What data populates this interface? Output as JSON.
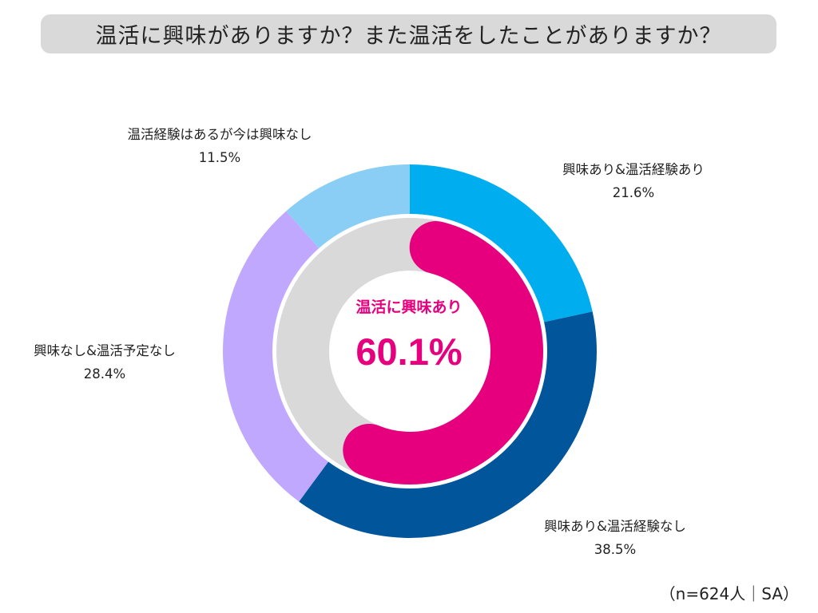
{
  "title": "温活に興味がありますか？また温活をしたことがありますか？",
  "sample_note": "（n=624人｜SA）",
  "center": {
    "caption": "温活に興味あり",
    "value": "60.1%"
  },
  "colors": {
    "inner_highlight": "#e6007e",
    "inner_remainder": "#d9d9d9",
    "center_text": "#e6007e"
  },
  "chart_data": {
    "type": "pie",
    "variant": "nested-donut",
    "title": "温活に興味がありますか？また温活をしたことがありますか？",
    "outer_ring": {
      "categories": [
        "興味あり&温活経験あり",
        "興味あり&温活経験なし",
        "興味なし&温活予定なし",
        "温活経験はあるが今は興味なし"
      ],
      "values": [
        21.6,
        38.5,
        28.4,
        11.5
      ],
      "labels": [
        "21.6%",
        "38.5%",
        "28.4%",
        "11.5%"
      ],
      "colors": [
        "#00aeef",
        "#00559b",
        "#c0a8ff",
        "#8acef5"
      ]
    },
    "inner_ring": {
      "name": "温活に興味あり",
      "value": 60.1,
      "label": "60.1%"
    },
    "start_angle": "12 o'clock, clockwise"
  }
}
